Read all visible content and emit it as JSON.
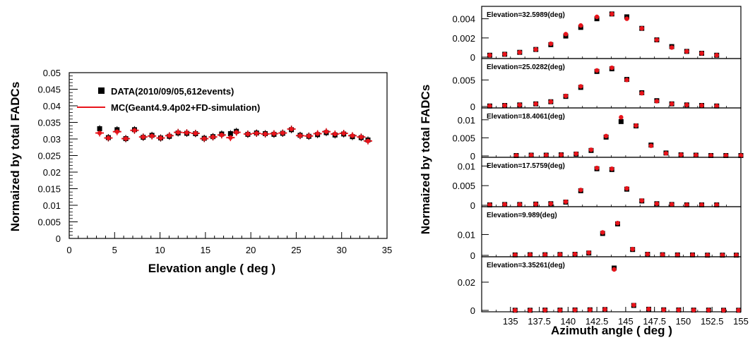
{
  "chart_data": [
    {
      "type": "scatter",
      "xlabel": "Elevation angle ( deg )",
      "ylabel": "Normaized by total FADCs",
      "xlim": [
        0,
        35
      ],
      "ylim": [
        0,
        0.05
      ],
      "xticks": [
        "0",
        "5",
        "10",
        "15",
        "20",
        "25",
        "30",
        "35"
      ],
      "yticks": [
        "0",
        "0.005",
        "0.01",
        "0.015",
        "0.02",
        "0.025",
        "0.03",
        "0.035",
        "0.04",
        "0.045",
        "0.05"
      ],
      "legend": [
        {
          "label": "DATA(2010/09/05,612events)",
          "marker": "square",
          "color": "#000000"
        },
        {
          "label": "MC(Geant4.9.4p02+FD-simulation)",
          "marker": "line",
          "color": "#e8141b"
        }
      ],
      "series": [
        {
          "name": "DATA(2010/09/05,612events)",
          "color": "#000000",
          "x": [
            3.35,
            4.31,
            5.27,
            6.23,
            7.19,
            8.15,
            9.11,
            10.07,
            11.03,
            11.99,
            12.95,
            13.91,
            14.87,
            15.83,
            16.79,
            17.76,
            18.41,
            19.67,
            20.63,
            21.59,
            22.55,
            23.51,
            24.47,
            25.43,
            26.39,
            27.35,
            28.31,
            29.27,
            30.23,
            31.19,
            32.15,
            32.9
          ],
          "y": [
            0.0331,
            0.0304,
            0.0328,
            0.0301,
            0.0328,
            0.0305,
            0.0311,
            0.0303,
            0.0308,
            0.0318,
            0.0317,
            0.0316,
            0.0302,
            0.0307,
            0.0315,
            0.0316,
            0.0323,
            0.0314,
            0.0318,
            0.0316,
            0.0314,
            0.0317,
            0.0328,
            0.0311,
            0.0308,
            0.0313,
            0.0319,
            0.0312,
            0.0315,
            0.0307,
            0.0304,
            0.0297
          ]
        },
        {
          "name": "MC(Geant4.9.4p02+FD-simulation)",
          "color": "#e8141b",
          "x": [
            3.35,
            4.31,
            5.27,
            6.23,
            7.19,
            8.15,
            9.11,
            10.07,
            11.03,
            11.99,
            12.95,
            13.91,
            14.87,
            15.83,
            16.79,
            17.76,
            18.41,
            19.67,
            20.63,
            21.59,
            22.55,
            23.51,
            24.47,
            25.43,
            26.39,
            27.35,
            28.31,
            29.27,
            30.23,
            31.19,
            32.15,
            32.9
          ],
          "y": [
            0.0318,
            0.0303,
            0.0322,
            0.0301,
            0.0326,
            0.0306,
            0.0309,
            0.0303,
            0.031,
            0.032,
            0.0319,
            0.0317,
            0.0301,
            0.0306,
            0.0312,
            0.0304,
            0.032,
            0.0315,
            0.0317,
            0.0315,
            0.0316,
            0.0318,
            0.033,
            0.031,
            0.0309,
            0.0316,
            0.0322,
            0.0315,
            0.0317,
            0.031,
            0.0306,
            0.0294
          ]
        }
      ]
    },
    {
      "type": "scatter",
      "xlabel": "Azimuth angle ( deg )",
      "ylabel": "Normaized by total FADCs",
      "xlim": [
        132.5,
        155
      ],
      "xticks": [
        "135",
        "137.5",
        "140",
        "142.5",
        "145",
        "147.5",
        "150",
        "152.5",
        "155"
      ],
      "x": [
        133.2,
        134.5,
        135.8,
        137.2,
        138.5,
        139.8,
        141.1,
        142.5,
        143.8,
        145.1,
        146.4,
        147.7,
        149.0,
        150.3,
        151.6,
        152.9
      ],
      "panels": [
        {
          "label": "Elevation=32.5989(deg)",
          "ylim": [
            0,
            0.005
          ],
          "yticks": [
            "0",
            "0.002",
            "0.004"
          ],
          "data": [
            0.0002,
            0.0003,
            0.0005,
            0.0008,
            0.0013,
            0.0022,
            0.0031,
            0.004,
            0.0045,
            0.0042,
            0.003,
            0.0018,
            0.0011,
            0.0006,
            0.0004,
            0.0002
          ],
          "mc": [
            0.0002,
            0.0003,
            0.0005,
            0.0008,
            0.0014,
            0.0024,
            0.0033,
            0.0042,
            0.0045,
            0.004,
            0.003,
            0.0018,
            0.001,
            0.0006,
            0.0004,
            0.0002
          ]
        },
        {
          "label": "Elevation=25.0282(deg)",
          "ylim": [
            0,
            0.0085
          ],
          "yticks": [
            "0",
            "0.005"
          ],
          "data": [
            0.0001,
            0.0002,
            0.0003,
            0.0005,
            0.0009,
            0.0019,
            0.0036,
            0.0066,
            0.0071,
            0.0051,
            0.0026,
            0.0011,
            0.0005,
            0.0003,
            0.0002,
            0.0001
          ],
          "mc": [
            0.0001,
            0.0002,
            0.0003,
            0.0005,
            0.0009,
            0.002,
            0.0038,
            0.0068,
            0.0073,
            0.005,
            0.0025,
            0.001,
            0.0005,
            0.0003,
            0.0002,
            0.0001
          ]
        },
        {
          "label": "Elevation=18.4061(deg)",
          "ylim": [
            0,
            0.0125
          ],
          "yticks": [
            "0",
            "0.005",
            "0.01"
          ],
          "data": [
            0.0001,
            0.0002,
            0.0002,
            0.0003,
            0.0005,
            0.0015,
            0.0052,
            0.0095,
            0.0083,
            0.003,
            0.0008,
            0.0003,
            0.0002,
            0.0001,
            0.0001,
            0.0001
          ],
          "mc": [
            0.0001,
            0.0002,
            0.0002,
            0.0003,
            0.0006,
            0.0017,
            0.0055,
            0.0107,
            0.0084,
            0.0028,
            0.0007,
            0.0003,
            0.0002,
            0.0001,
            0.0001,
            0.0001
          ],
          "x": [
            135.5,
            136.8,
            138.1,
            139.4,
            140.7,
            142.0,
            143.3,
            144.6,
            145.9,
            147.2,
            148.5,
            149.8,
            151.1,
            152.4,
            153.7,
            155.0
          ]
        },
        {
          "label": "Elevation=17.5759(deg)",
          "ylim": [
            0,
            0.0115
          ],
          "yticks": [
            "0",
            "0.005",
            "0.01"
          ],
          "data": [
            0.0001,
            0.0002,
            0.0002,
            0.0003,
            0.0004,
            0.0008,
            0.0037,
            0.0093,
            0.0091,
            0.0041,
            0.0011,
            0.0004,
            0.0002,
            0.0001,
            0.0001,
            0.0001
          ],
          "mc": [
            0.0001,
            0.0002,
            0.0002,
            0.0003,
            0.0004,
            0.0009,
            0.0039,
            0.0095,
            0.0093,
            0.0043,
            0.0012,
            0.0004,
            0.0002,
            0.0001,
            0.0001,
            0.0001
          ]
        },
        {
          "label": "Elevation=9.989(deg)",
          "ylim": [
            0,
            0.022
          ],
          "yticks": [
            "0",
            "0.01"
          ],
          "data": [
            0.0002,
            0.0003,
            0.0003,
            0.0004,
            0.0005,
            0.0011,
            0.0105,
            0.0151,
            0.0028,
            0.0005,
            0.0003,
            0.0002,
            0.0002,
            0.0001,
            0.0001,
            0.0001
          ],
          "mc": [
            0.0002,
            0.0003,
            0.0003,
            0.0004,
            0.0006,
            0.0013,
            0.011,
            0.0155,
            0.003,
            0.0006,
            0.0003,
            0.0002,
            0.0002,
            0.0001,
            0.0001,
            0.0001
          ],
          "x": [
            133.9,
            135.2,
            136.5,
            137.8,
            139.1,
            140.4,
            141.7,
            143.0,
            144.3,
            145.6,
            146.9,
            148.2,
            149.5,
            150.8,
            152.1,
            153.4
          ],
          "x_override": [
            135.4,
            136.7,
            138.0,
            139.3,
            140.6,
            141.8,
            143.0,
            144.3,
            145.6,
            146.9,
            148.2,
            149.5,
            150.8,
            152.1,
            153.4,
            154.6
          ]
        },
        {
          "label": "Elevation=3.35261(deg)",
          "ylim": [
            0,
            0.036
          ],
          "yticks": [
            "0",
            "0.02"
          ],
          "data": [
            0.0001,
            0.0001,
            0.0002,
            0.0002,
            0.0003,
            0.0004,
            0.0006,
            0.03,
            0.0035,
            0.0008,
            0.0004,
            0.0003,
            0.0002,
            0.0002,
            0.0001,
            0.0001
          ],
          "mc": [
            0.0001,
            0.0001,
            0.0002,
            0.0002,
            0.0003,
            0.0004,
            0.0007,
            0.029,
            0.0038,
            0.0009,
            0.0004,
            0.0003,
            0.0002,
            0.0002,
            0.0001,
            0.0001
          ],
          "x": [
            135.4,
            136.7,
            138.0,
            139.3,
            140.6,
            141.9,
            143.2,
            144.0,
            145.7,
            147.0,
            148.3,
            149.6,
            150.9,
            152.2,
            153.5,
            154.8
          ]
        }
      ]
    }
  ]
}
